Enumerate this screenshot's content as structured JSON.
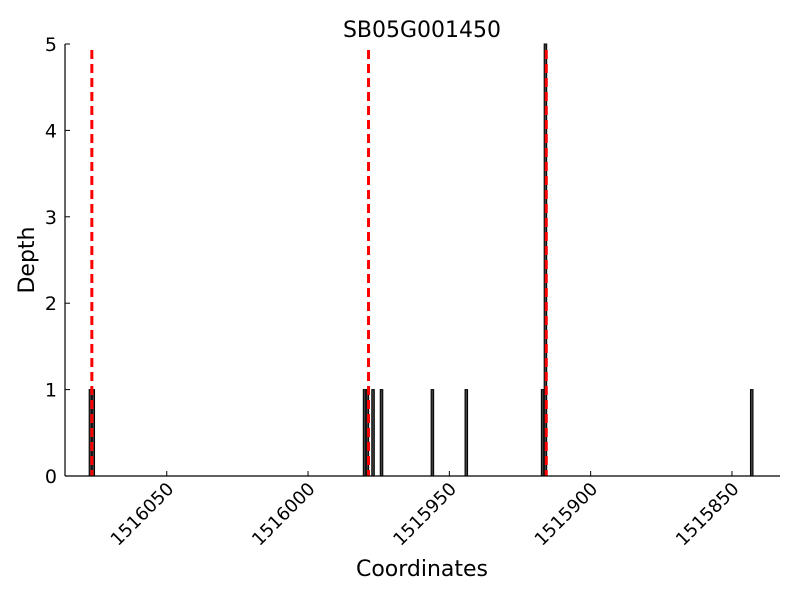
{
  "chart_data": {
    "type": "bar",
    "title": "SB05G001450",
    "xlabel": "Coordinates",
    "ylabel": "Depth",
    "xlim": [
      1516086,
      1515833
    ],
    "ylim": [
      0,
      5
    ],
    "x_reversed": true,
    "xticks": [
      1516050,
      1516000,
      1515950,
      1515900,
      1515850
    ],
    "yticks": [
      0,
      1,
      2,
      3,
      4,
      5
    ],
    "bars": [
      {
        "x": 1516077,
        "y": 1
      },
      {
        "x": 1516076,
        "y": 1
      },
      {
        "x": 1515980,
        "y": 1
      },
      {
        "x": 1515979,
        "y": 1
      },
      {
        "x": 1515977,
        "y": 1
      },
      {
        "x": 1515974,
        "y": 1
      },
      {
        "x": 1515956,
        "y": 1
      },
      {
        "x": 1515944,
        "y": 1
      },
      {
        "x": 1515917,
        "y": 1
      },
      {
        "x": 1515916,
        "y": 5
      },
      {
        "x": 1515843,
        "y": 1
      }
    ],
    "vlines": [
      1516076.5,
      1515978.6,
      1515915.7
    ],
    "vline_color": "#ff0000",
    "bar_color": "#404040",
    "grid": false
  }
}
